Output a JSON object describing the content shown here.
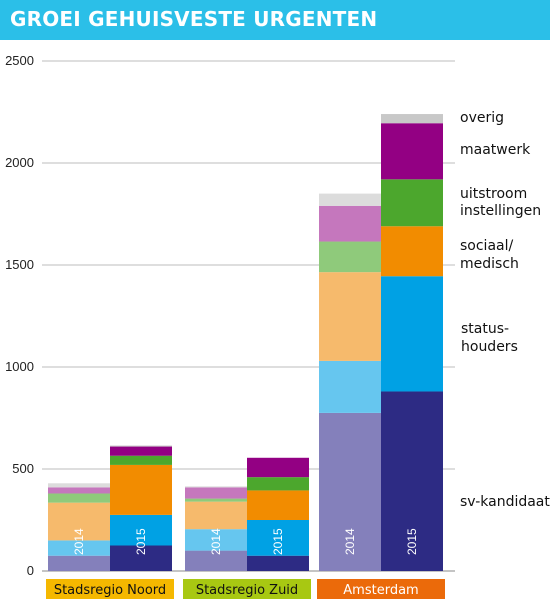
{
  "title": "GROEI GEHUISVESTE URGENTEN",
  "colors": {
    "banner": "#2bbfe8",
    "categories_2015": {
      "sv-kandidaat": "#2d2b84",
      "statushouders": "#00a1e4",
      "sociaal-medisch": "#f28c00",
      "uitstroom": "#4ca72d",
      "maatwerk": "#930083",
      "overig": "#c8c8c8"
    },
    "categories_2014": {
      "sv-kandidaat": "#8480bb",
      "statushouders": "#66c6ef",
      "sociaal-medisch": "#f6ba6c",
      "uitstroom": "#8fca7b",
      "maatwerk": "#c577bd",
      "overig": "#dcdcdc"
    },
    "group_labels": {
      "Stadsregio Noord": "#f5b800",
      "Stadsregio Zuid": "#a8c812",
      "Amsterdam": "#eb6a0a"
    }
  },
  "legend": [
    {
      "key": "overig",
      "lines": [
        "overig"
      ]
    },
    {
      "key": "maatwerk",
      "lines": [
        "maatwerk"
      ]
    },
    {
      "key": "uitstroom",
      "lines": [
        "uitstroom",
        "instellingen"
      ]
    },
    {
      "key": "sociaal-medisch",
      "lines": [
        "sociaal/",
        "medisch"
      ]
    },
    {
      "key": "statushouders",
      "lines": [
        "status-",
        "houders"
      ]
    },
    {
      "key": "sv-kandidaat",
      "lines": [
        "sv-kandidaat"
      ]
    }
  ],
  "chart_data": {
    "type": "bar",
    "stacked": true,
    "title": "GROEI GEHUISVESTE URGENTEN",
    "ylim": [
      0,
      2500
    ],
    "yticks": [
      0,
      500,
      1000,
      1500,
      2000,
      2500
    ],
    "grid": true,
    "legend_position": "right",
    "stack_order": [
      "sv-kandidaat",
      "statushouders",
      "sociaal-medisch",
      "uitstroom",
      "maatwerk",
      "overig"
    ],
    "groups": [
      {
        "name": "Stadsregio Noord",
        "bars": [
          {
            "year": "2014",
            "values": {
              "sv-kandidaat": 75,
              "statushouders": 75,
              "sociaal-medisch": 185,
              "uitstroom": 45,
              "maatwerk": 30,
              "overig": 20
            }
          },
          {
            "year": "2015",
            "values": {
              "sv-kandidaat": 125,
              "statushouders": 150,
              "sociaal-medisch": 245,
              "uitstroom": 45,
              "maatwerk": 45,
              "overig": 5
            }
          }
        ]
      },
      {
        "name": "Stadsregio Zuid",
        "bars": [
          {
            "year": "2014",
            "values": {
              "sv-kandidaat": 100,
              "statushouders": 105,
              "sociaal-medisch": 135,
              "uitstroom": 15,
              "maatwerk": 55,
              "overig": 5
            }
          },
          {
            "year": "2015",
            "values": {
              "sv-kandidaat": 75,
              "statushouders": 175,
              "sociaal-medisch": 145,
              "uitstroom": 65,
              "maatwerk": 95,
              "overig": 0
            }
          }
        ]
      },
      {
        "name": "Amsterdam",
        "bars": [
          {
            "year": "2014",
            "values": {
              "sv-kandidaat": 775,
              "statushouders": 255,
              "sociaal-medisch": 435,
              "uitstroom": 150,
              "maatwerk": 175,
              "overig": 60
            }
          },
          {
            "year": "2015",
            "values": {
              "sv-kandidaat": 880,
              "statushouders": 565,
              "sociaal-medisch": 245,
              "uitstroom": 230,
              "maatwerk": 275,
              "overig": 45
            }
          }
        ]
      }
    ]
  }
}
